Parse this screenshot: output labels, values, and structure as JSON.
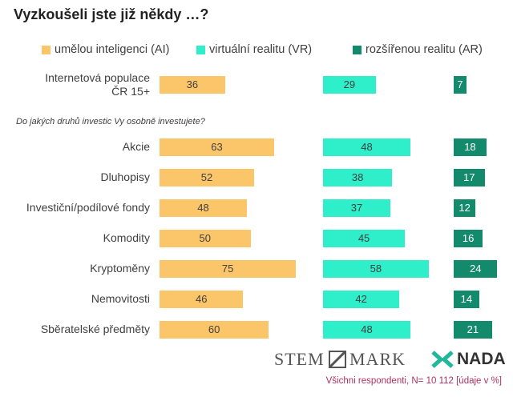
{
  "chart_data": {
    "type": "bar",
    "orientation": "horizontal",
    "layout": "panels",
    "title": "Vyzkoušeli jste již někdy …?",
    "group_label": "Do jakých druhů investic Vy osobně investujete?",
    "categories": [
      "Internetová populace ČR 15+",
      "Akcie",
      "Dluhopisy",
      "Investiční/podílové fondy",
      "Komodity",
      "Kryptoměny",
      "Nemovitosti",
      "Sběratelské předměty"
    ],
    "series": [
      {
        "name": "umělou inteligenci (AI)",
        "color": "#fbc56a",
        "values": [
          36,
          63,
          52,
          48,
          50,
          75,
          46,
          60
        ]
      },
      {
        "name": "virtuální realitu (VR)",
        "color": "#2eefc9",
        "values": [
          29,
          48,
          38,
          37,
          45,
          58,
          42,
          48
        ]
      },
      {
        "name": "rozšířenou realitu (AR)",
        "color": "#138a6c",
        "values": [
          7,
          18,
          17,
          12,
          16,
          24,
          14,
          21
        ]
      }
    ],
    "logos": [
      "STEM",
      "MARK",
      "NADA"
    ],
    "footnote": "Všichni respondenti, N= 10 112 [údaje v %]"
  }
}
